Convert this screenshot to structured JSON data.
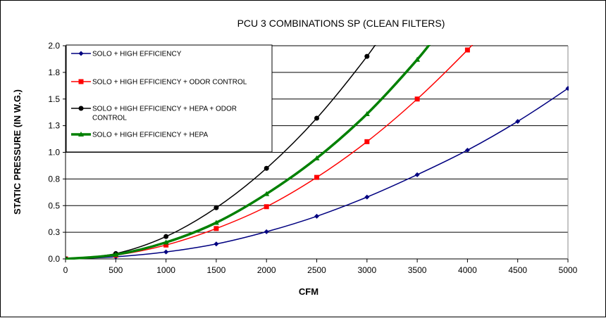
{
  "chart_data": {
    "type": "line",
    "title": "PCU 3 COMBINATIONS SP (CLEAN FILTERS)",
    "xlabel": "CFM",
    "ylabel": "STATIC PRESSURE (IN W.G.)",
    "xlim": [
      0,
      5000
    ],
    "ylim": [
      0,
      2.0
    ],
    "x_ticks": [
      0,
      500,
      1000,
      1500,
      2000,
      2500,
      3000,
      3500,
      4000,
      4500,
      5000
    ],
    "x_tick_labels": [
      "0",
      "500",
      "1000",
      "1500",
      "2000",
      "2500",
      "3000",
      "3500",
      "4000",
      "4500",
      "5000"
    ],
    "y_ticks": [
      0,
      0.25,
      0.5,
      0.75,
      1.0,
      1.25,
      1.5,
      1.75,
      2.0
    ],
    "y_tick_labels": [
      "0.0",
      "0.3",
      "0.5",
      "0.8",
      "1.0",
      "1.3",
      "1.5",
      "1.8",
      "2.0"
    ],
    "grid": "horizontal",
    "legend_position": "top-left",
    "series": [
      {
        "name": "SOLO + HIGH EFFICIENCY",
        "color": "#000080",
        "marker": "diamond",
        "x": [
          0,
          500,
          1000,
          1500,
          2000,
          2500,
          3000,
          3500,
          4000,
          4500,
          5000
        ],
        "values": [
          0,
          0.02,
          0.065,
          0.14,
          0.255,
          0.4,
          0.58,
          0.79,
          1.02,
          1.29,
          1.6
        ]
      },
      {
        "name": "SOLO + HIGH EFFICIENCY + ODOR CONTROL",
        "color": "#ff0000",
        "marker": "square",
        "x": [
          0,
          500,
          1000,
          1500,
          2000,
          2500,
          3000,
          3500,
          4000
        ],
        "values": [
          0,
          0.035,
          0.13,
          0.285,
          0.49,
          0.765,
          1.1,
          1.5,
          1.96
        ]
      },
      {
        "name": "SOLO + HIGH EFFICIENCY + HEPA + ODOR CONTROL",
        "color": "#000000",
        "marker": "circle",
        "x": [
          0,
          500,
          1000,
          1500,
          2000,
          2500,
          3000
        ],
        "values": [
          0,
          0.05,
          0.21,
          0.48,
          0.85,
          1.32,
          1.9
        ]
      },
      {
        "name": "SOLO + HIGH EFFICIENCY + HEPA",
        "color": "#008000",
        "marker": "triangle",
        "x": [
          0,
          500,
          1000,
          1500,
          2000,
          2500,
          3000,
          3500
        ],
        "values": [
          0,
          0.04,
          0.155,
          0.34,
          0.61,
          0.945,
          1.36,
          1.87
        ]
      }
    ]
  }
}
